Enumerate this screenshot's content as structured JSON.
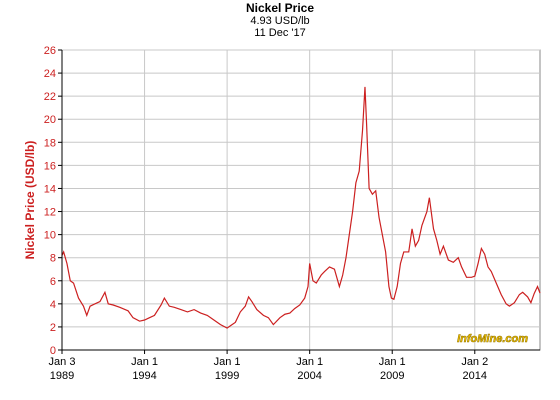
{
  "chart_data": {
    "type": "line",
    "title": "Nickel Price",
    "subtitle": "4.93 USD/lb",
    "date": "11 Dec '17",
    "ylabel": "Nickel Price (USD/lb)",
    "watermark": "InfoMine.com",
    "xlim": [
      1989.0,
      2017.95
    ],
    "ylim": [
      0,
      26
    ],
    "yticks": [
      0,
      2,
      4,
      6,
      8,
      10,
      12,
      14,
      16,
      18,
      20,
      22,
      24,
      26
    ],
    "xticks": [
      {
        "value": 1989.0,
        "label": [
          "Jan 3",
          "1989"
        ]
      },
      {
        "value": 1994.0,
        "label": [
          "Jan 1",
          "1994"
        ]
      },
      {
        "value": 1999.0,
        "label": [
          "Jan 1",
          "1999"
        ]
      },
      {
        "value": 2004.0,
        "label": [
          "Jan 1",
          "2004"
        ]
      },
      {
        "value": 2009.0,
        "label": [
          "Jan 1",
          "2009"
        ]
      },
      {
        "value": 2014.0,
        "label": [
          "Jan 2",
          "2014"
        ]
      }
    ],
    "grid": true,
    "series": [
      {
        "name": "Nickel Price",
        "color": "#cc2020",
        "x": [
          1989.0,
          1989.1,
          1989.3,
          1989.5,
          1989.7,
          1990.0,
          1990.3,
          1990.5,
          1990.7,
          1991.0,
          1991.3,
          1991.6,
          1991.8,
          1992.1,
          1992.5,
          1993.0,
          1993.3,
          1993.7,
          1994.0,
          1994.3,
          1994.6,
          1995.0,
          1995.2,
          1995.5,
          1995.8,
          1996.2,
          1996.6,
          1997.0,
          1997.4,
          1997.8,
          1998.2,
          1998.6,
          1999.0,
          1999.2,
          1999.5,
          1999.8,
          2000.1,
          2000.3,
          2000.5,
          2000.8,
          2001.2,
          2001.5,
          2001.8,
          2002.2,
          2002.5,
          2002.8,
          2003.1,
          2003.4,
          2003.7,
          2003.9,
          2004.0,
          2004.2,
          2004.4,
          2004.7,
          2004.9,
          2005.2,
          2005.5,
          2005.8,
          2006.0,
          2006.2,
          2006.4,
          2006.6,
          2006.8,
          2007.0,
          2007.2,
          2007.35,
          2007.45,
          2007.6,
          2007.8,
          2008.0,
          2008.2,
          2008.4,
          2008.6,
          2008.8,
          2008.95,
          2009.1,
          2009.3,
          2009.5,
          2009.7,
          2010.0,
          2010.2,
          2010.4,
          2010.6,
          2010.8,
          2011.1,
          2011.25,
          2011.5,
          2011.7,
          2011.9,
          2012.1,
          2012.4,
          2012.7,
          2013.0,
          2013.2,
          2013.5,
          2013.8,
          2014.0,
          2014.2,
          2014.4,
          2014.6,
          2014.8,
          2015.0,
          2015.3,
          2015.6,
          2015.9,
          2016.1,
          2016.4,
          2016.7,
          2016.9,
          2017.2,
          2017.4,
          2017.6,
          2017.8,
          2017.95
        ],
        "values": [
          8.2,
          8.5,
          7.5,
          6.0,
          5.8,
          4.5,
          3.8,
          3.0,
          3.8,
          4.0,
          4.2,
          5.0,
          4.0,
          3.9,
          3.7,
          3.4,
          2.8,
          2.5,
          2.6,
          2.8,
          3.0,
          3.9,
          4.5,
          3.8,
          3.7,
          3.5,
          3.3,
          3.5,
          3.2,
          3.0,
          2.6,
          2.2,
          1.9,
          2.1,
          2.4,
          3.3,
          3.8,
          4.6,
          4.2,
          3.5,
          3.0,
          2.8,
          2.2,
          2.8,
          3.1,
          3.2,
          3.6,
          3.9,
          4.5,
          5.5,
          7.5,
          6.0,
          5.8,
          6.5,
          6.8,
          7.2,
          7.0,
          5.5,
          6.5,
          8.0,
          10.0,
          12.0,
          14.5,
          15.5,
          19.0,
          22.8,
          19.5,
          14.0,
          13.5,
          13.8,
          11.5,
          10.0,
          8.5,
          5.5,
          4.5,
          4.4,
          5.5,
          7.5,
          8.5,
          8.5,
          10.5,
          9.0,
          9.5,
          10.8,
          12.0,
          13.2,
          10.5,
          9.5,
          8.3,
          9.0,
          7.8,
          7.6,
          8.0,
          7.2,
          6.3,
          6.3,
          6.4,
          7.5,
          8.8,
          8.3,
          7.2,
          6.8,
          5.8,
          4.8,
          4.0,
          3.8,
          4.1,
          4.8,
          5.0,
          4.6,
          4.1,
          4.9,
          5.5,
          4.93
        ]
      }
    ]
  }
}
